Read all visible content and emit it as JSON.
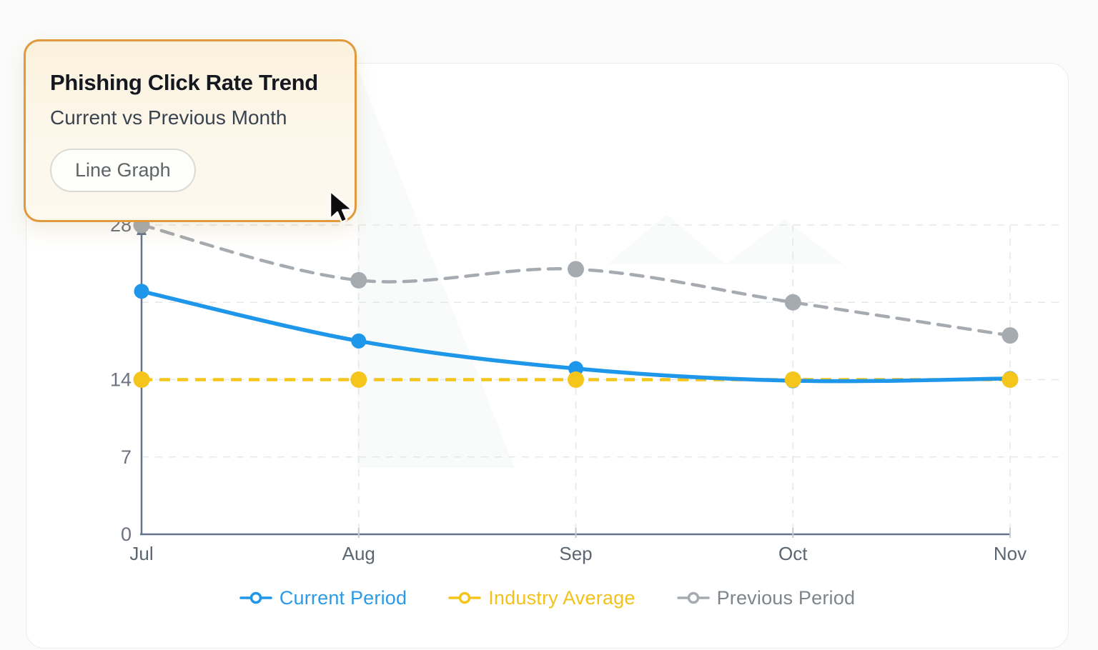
{
  "card": {
    "title": "Phishing Click Rate Trend",
    "subtitle": "Current vs Previous Month",
    "badge_label": "Line Graph",
    "border_color": "#E0993C",
    "background": "#FCF5E6"
  },
  "chart_data": {
    "type": "line",
    "title": "Phishing Click Rate Trend",
    "subtitle": "Current vs Previous Month",
    "categories": [
      "Jul",
      "Aug",
      "Sep",
      "Oct",
      "Nov"
    ],
    "series": [
      {
        "name": "Current Period",
        "color": "#1E96EA",
        "text_color": "#2B9BE8",
        "style": "solid",
        "marker_radius": 10.5,
        "values": [
          22,
          17.5,
          15,
          13.9,
          14.1
        ]
      },
      {
        "name": "Industry Average",
        "color": "#F5C51C",
        "text_color": "#F2C21B",
        "style": "dashed",
        "marker_radius": 11.5,
        "values": [
          14,
          14,
          14,
          14,
          14
        ]
      },
      {
        "name": "Previous Period",
        "color": "#A6ABB1",
        "text_color": "#7E858C",
        "style": "dashed",
        "marker_radius": 11.5,
        "values": [
          28,
          23,
          24,
          21,
          18
        ]
      }
    ],
    "ylim": [
      0,
      28
    ],
    "y_tick_labels": [
      {
        "label": "28",
        "value": 28
      },
      {
        "label": "14",
        "value": 14
      },
      {
        "label": "7",
        "value": 7
      },
      {
        "label": "0",
        "value": 0
      }
    ],
    "y_gridline_values": [
      7,
      14,
      21,
      28
    ],
    "grid": true,
    "legend_position": "bottom",
    "colors": {
      "axis": "#64748B",
      "grid": "#E5E7E9",
      "tick": "#C2CBD2",
      "x_tick_label": "#5C6670",
      "y_tick_label": "#6B7280"
    }
  }
}
